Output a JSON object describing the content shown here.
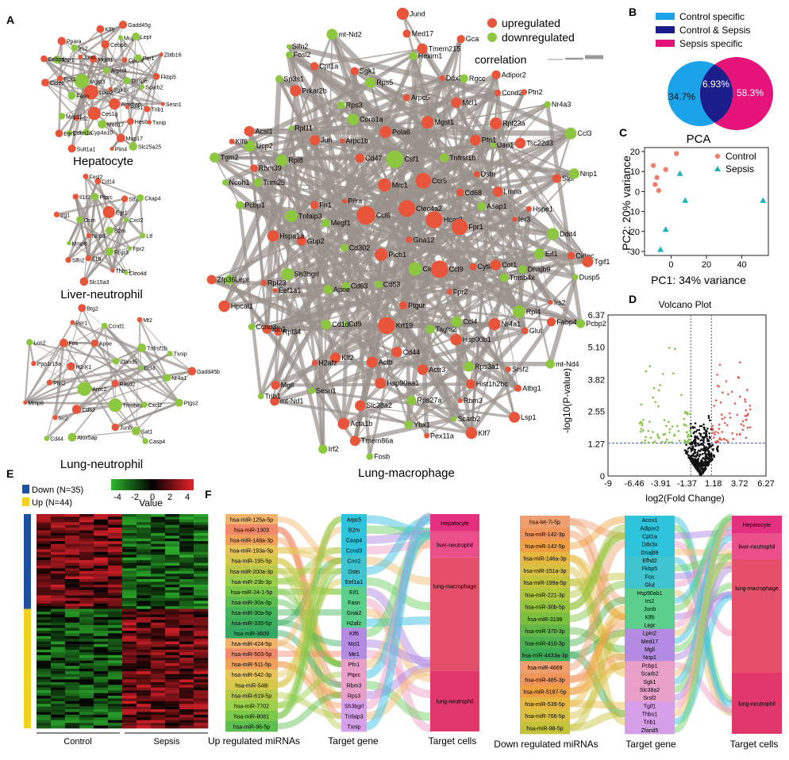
{
  "panels": {
    "A": "A",
    "B": "B",
    "C": "C",
    "D": "D",
    "E": "E",
    "F": "F"
  },
  "networks": {
    "hepatocyte": {
      "title": "Hepatocyte",
      "nodes": [
        "Sgk1",
        "Lpin2",
        "Arpct4",
        "Alox5ap",
        "Mgst3",
        "Dusp5",
        "Ces1g",
        "Mgst1",
        "Hes1",
        "Fasn",
        "Cpt1a",
        "Med17",
        "Jund",
        "Scarb2",
        "Irf2",
        "Cebpb",
        "Hes6",
        "Pck1",
        "Per1",
        "Cyp4a10",
        "Irs2",
        "Trib1",
        "Mup11",
        "Mup15",
        "Mup17",
        "Msr1",
        "Fkbp5",
        "Cdkn1a",
        "Klf6",
        "Txnip",
        "Cidec",
        "Lepr",
        "Plin4",
        "Ppara",
        "Sesn1",
        "Egr1",
        "Gadd45g",
        "Slc25a25",
        "Cebpd",
        "Zbtb16",
        "Sult1a1"
      ]
    },
    "liver_neutrophil": {
      "title": "Liver-neutrophil",
      "nodes": [
        "B2m",
        "Nlrp3",
        "Egr1",
        "Fcgr3",
        "Osm",
        "Cxcl2",
        "Il1b",
        "Ptprc",
        "Fpr2",
        "Mmp8",
        "Stfa2",
        "Thbs1",
        "Il1r2",
        "Ltf",
        "Slfn2",
        "Cd14",
        "Cleo4d",
        "Irg1",
        "Ckap4",
        "Slc15a3",
        "Fosl2"
      ]
    },
    "lung_neutrophil": {
      "title": "Lung-neutrophil",
      "nodes": [
        "Rasd2",
        "Arpc2",
        "Zfand5",
        "Tmsb4x",
        "H2-K1",
        "Ccl4",
        "Cd52",
        "Apoe",
        "Cxcl2",
        "Plin2",
        "Tnfrsf1b",
        "Junb",
        "Fos",
        "Nr4a1",
        "Ier2",
        "Ccnd1",
        "Sat1",
        "Ppp1r15a",
        "Txnip",
        "Alox5ap",
        "Per1",
        "Ptgs2",
        "Mmp8",
        "Mt2",
        "Casp4",
        "Lcn2",
        "Gadd45b",
        "Cd44",
        "Btg2"
      ]
    },
    "lung_macrophage": {
      "title": "Lung-macrophage",
      "nodes": [
        "Gna12",
        "Plcb1",
        "Clec4a2",
        "Clec7a",
        "Ccl6",
        "Hcar2",
        "Cd83",
        "Mrc1",
        "Ccl9",
        "Cd302",
        "Ccr5",
        "Ptgur",
        "Pilra",
        "Fpr1",
        "Cd63",
        "Csf1",
        "Fpr2",
        "Megf1",
        "Cd68",
        "Krt19",
        "Cd47",
        "Cytl4",
        "Apoe",
        "Tnfrsf1b",
        "Tagln2",
        "Fn1",
        "Asap1",
        "Cd9",
        "Pola6",
        "Ccl4",
        "Gbp2",
        "Dstn",
        "Cd44",
        "Arpc1b",
        "Cot1",
        "Cd1d",
        "Mgst1",
        "Hsp90b1",
        "Tnfaip3",
        "Lmna",
        "Actb",
        "Coro1a",
        "Tmsb4x",
        "Sh3bgrl",
        "Pfn1",
        "Actr3",
        "Jun",
        "Ier3",
        "Klf2",
        "Arpc5",
        "Nr4a1",
        "Hspa1a",
        "Uap1",
        "Hsp90aa1",
        "Rps3",
        "Dnajb9",
        "Eef1a1",
        "Mcl1",
        "Rps3a1",
        "Rpl8",
        "Hspe1",
        "H2afz",
        "Rps5",
        "Rpl4",
        "Rpl23",
        "Rpl23a",
        "Rps27a",
        "Rpl11",
        "Eif1",
        "Rpl34",
        "Ddx3x",
        "Hist1h2bc",
        "Trim25",
        "Tsc22d3",
        "Slc38a2",
        "Sgk1",
        "Glul",
        "Idh1",
        "Rgcc",
        "Rbm3",
        "Rbm39",
        "Ddit4",
        "Sesn1",
        "Hexim1",
        "Srsf2",
        "Pcbp1",
        "Ccnd2",
        "Ybx1",
        "Prkar2b",
        "Irs2",
        "Ccnd3",
        "Tmem215",
        "Scarb2",
        "Ucp2",
        "Slpi",
        "Acta1b",
        "Cpt1a",
        "Fabp4",
        "Lepr",
        "Adipor2",
        "Pex11a",
        "Acsl1",
        "Cidec",
        "Mgll",
        "Med17",
        "Atbg1",
        "Ncoh1",
        "Ptn2",
        "Tmem86a",
        "Sp3s1",
        "Dusp5",
        "Hpcal1",
        "Gca",
        "Klf7",
        "Klf6",
        "Nrip1",
        "mt-Nd1",
        "mt-Nd2",
        "mt-Nd4",
        "Zfp36",
        "Nr4a3",
        "Fosb",
        "Fosl2",
        "Tgif1",
        "Trib1",
        "Jund",
        "Lsp1",
        "Tgm2",
        "Ccl3",
        "Irf2",
        "Slfn2",
        "Pcbp2"
      ]
    }
  },
  "legend": {
    "up": "upregulated",
    "down": "downregulated",
    "corr": "correlation"
  },
  "venn": {
    "items": [
      {
        "label": "Control specific",
        "color": "#1aa3e8"
      },
      {
        "label": "Control & Sepsis",
        "color": "#1b1d8a"
      },
      {
        "label": "Sepsis specific",
        "color": "#e5137a"
      }
    ],
    "left": "34.7%",
    "mid": "6.93%",
    "right": "58.3%"
  },
  "chart_data": [
    {
      "type": "scatter",
      "title": "PCA",
      "xlabel": "PC1: 34% variance",
      "ylabel": "PC2: 20% variance",
      "xlim": [
        -15,
        55
      ],
      "ylim": [
        -32,
        22
      ],
      "xticks": [
        "0",
        "20",
        "40"
      ],
      "yticks": [
        "20",
        "10",
        "0",
        "-10",
        "-20",
        "-30"
      ],
      "legend": "top-right",
      "series": [
        {
          "name": "Control",
          "color": "#f08070",
          "shape": "circle",
          "points": [
            [
              -10,
              13
            ],
            [
              -9,
              3.5
            ],
            [
              -8,
              7
            ],
            [
              -7,
              0.5
            ],
            [
              -3,
              11
            ],
            [
              3,
              19
            ]
          ]
        },
        {
          "name": "Sepsis",
          "color": "#1fb3b3",
          "shape": "triangle",
          "points": [
            [
              -6,
              -29
            ],
            [
              -3,
              -19
            ],
            [
              5,
              9
            ],
            [
              8,
              -4.5
            ],
            [
              52,
              -4.5
            ]
          ]
        }
      ]
    },
    {
      "type": "scatter",
      "title": "Volcano Plot",
      "xlabel": "log2(Fold Change)",
      "ylabel": "-log10(P-value)",
      "xlim": [
        -9,
        6.27
      ],
      "ylim": [
        0,
        6.37
      ],
      "xticks": [
        "-9",
        "-6.46",
        "-3.91",
        "-1.37",
        "1.18",
        "3.72",
        "6.27"
      ],
      "yticks": [
        "6.37",
        "5.10",
        "3.82",
        "2.55",
        "1.27",
        "0"
      ],
      "thresholds": {
        "x": [
          -1,
          1
        ],
        "y": 1.3
      }
    },
    {
      "type": "heatmap",
      "legend_title": "Value",
      "scale_ticks": [
        "-4",
        "-2",
        "0",
        "2",
        "4"
      ],
      "groups": [
        "Control",
        "Sepsis"
      ],
      "row_groups": [
        {
          "label": "Down (N=35)",
          "color": "#1e4fa0"
        },
        {
          "label": "Up (N=44)",
          "color": "#f1d21c"
        }
      ],
      "rows": 79,
      "cols": 12
    }
  ],
  "sankey_up": {
    "source_title": "Up regulated miRNAs",
    "gene_title": "Target gene",
    "cell_title": "Target cells",
    "mirnas": [
      "hsa-miR-125a-5p",
      "hsa-miR-1303",
      "hsa-miR-148a-3p",
      "hsa-miR-193a-5p",
      "hsa-miR-195-5p",
      "hsa-miR-200a-3p",
      "hsa-miR-23b-3p",
      "hsa-miR-24-1-5p",
      "hsa-miR-30a-3p",
      "hsa-miR-30a-5p",
      "hsa-miR-335-5p",
      "hsa-miR-3609",
      "hsa-miR-424-5p",
      "hsa-miR-503-5p",
      "hsa-miR-511-5p",
      "hsa-miR-542-3p",
      "hsa-miR-548i",
      "hsa-miR-619-5p",
      "hsa-miR-7702",
      "hsa-miR-8081",
      "hsa-miR-96-5p"
    ],
    "genes": [
      "Arpc5",
      "B2m",
      "Casp4",
      "Ccnd3",
      "Cnn2",
      "Dstn",
      "Eef1a1",
      "Eif1",
      "Fasn",
      "Gnai2",
      "H2afz",
      "Klf6",
      "Mcl1",
      "Me1",
      "Pfn1",
      "Ptprc",
      "Rbm3",
      "Rps3",
      "Sh3bgrl",
      "Tnfaip3",
      "Txnip"
    ],
    "cells": [
      "Hepatocyte",
      "liver-neutrophil",
      "lung-macrophage",
      "lung-neutrophil"
    ]
  },
  "sankey_down": {
    "source_title": "Down regulated miRNAs",
    "gene_title": "Target gene",
    "cell_title": "Target cells",
    "mirnas": [
      "hsa-let-7i-5p",
      "hsa-miR-142-3p",
      "hsa-miR-142-5p",
      "hsa-miR-146a-3p",
      "hsa-miR-151a-3p",
      "hsa-miR-199a-5p",
      "hsa-miR-221-3p",
      "hsa-miR-30b-5p",
      "hsa-miR-3198",
      "hsa-miR-370-3p",
      "hsa-miR-410-3p",
      "hsa-miR-4433a-3p",
      "hsa-miR-4669",
      "hsa-miR-485-3p",
      "hsa-miR-5187-5p",
      "hsa-miR-539-5p",
      "hsa-miR-766-5p",
      "hsa-miR-98-5p"
    ],
    "genes": [
      "Acox1",
      "Adipor2",
      "Cpt1a",
      "Ddx3x",
      "Dnajb9",
      "Efhd2",
      "Fkbp5",
      "Fos",
      "Glul",
      "Hsp90ab1",
      "Irs2",
      "Junb",
      "Klf6",
      "Lepr",
      "Lpin2",
      "Med17",
      "Mgll",
      "Nrip1",
      "Pcbp1",
      "Scarb2",
      "Sgk1",
      "Slc38a2",
      "Srsf2",
      "Tgif1",
      "Thbs1",
      "Trib1",
      "Zfand5"
    ],
    "cells": [
      "Hepatocyte",
      "liver-neutrophil",
      "lung-macrophage",
      "lung-neutrophil"
    ]
  }
}
